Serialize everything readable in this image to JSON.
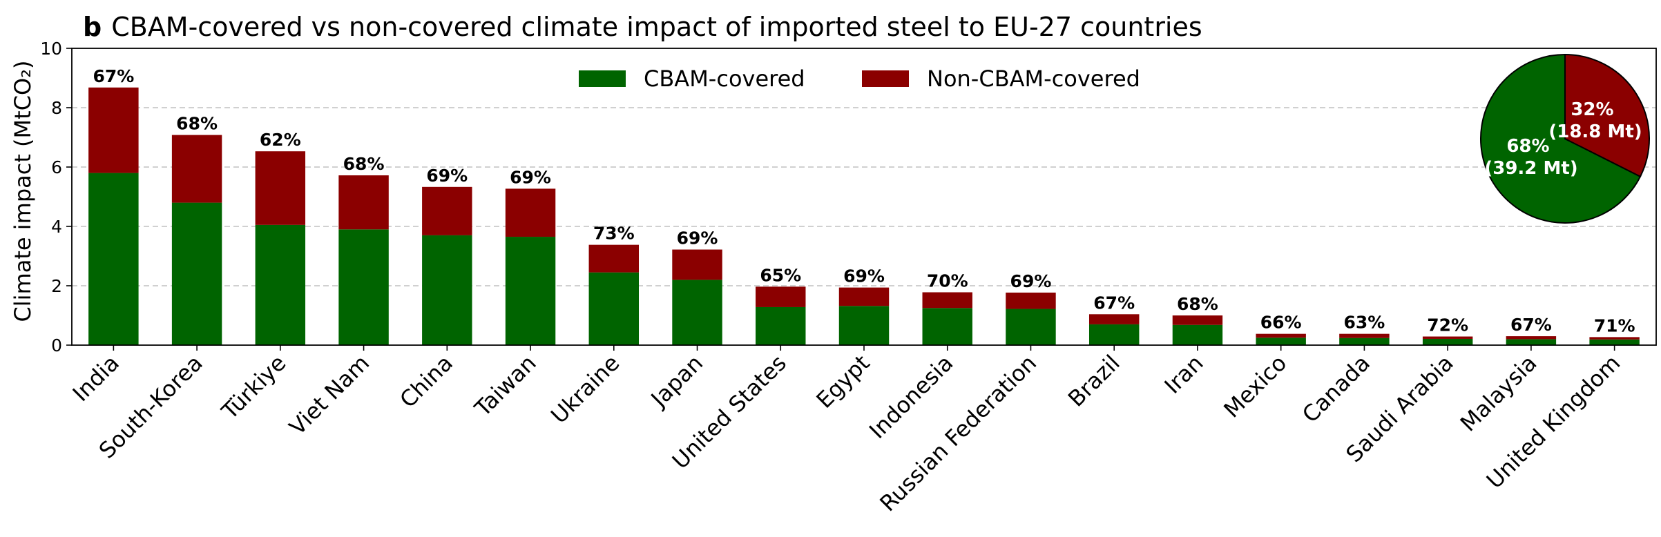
{
  "title": {
    "prefix": "b",
    "text": "CBAM-covered vs non-covered climate impact of imported steel to EU-27 countries"
  },
  "colors": {
    "covered": "#006400",
    "non_covered": "#8b0000",
    "grid": "#c0c0c0",
    "pie_edge": "#000000"
  },
  "chart_data": {
    "type": "bar",
    "stacked": true,
    "ylabel": "Climate impact (MtCO₂)",
    "xlabel": "",
    "ylim": [
      0,
      10
    ],
    "yticks": [
      0,
      2,
      4,
      6,
      8,
      10
    ],
    "grid": "horizontal dashed",
    "legend_position": "top-center",
    "categories": [
      "India",
      "South-Korea",
      "Türkiye",
      "Viet Nam",
      "China",
      "Taiwan",
      "Ukraine",
      "Japan",
      "United States",
      "Egypt",
      "Indonesia",
      "Russian Federation",
      "Brazil",
      "Iran",
      "Mexico",
      "Canada",
      "Saudi Arabia",
      "Malaysia",
      "United Kingdom"
    ],
    "series": [
      {
        "name": "CBAM-covered",
        "values": [
          5.8,
          4.8,
          4.05,
          3.9,
          3.7,
          3.65,
          2.45,
          2.2,
          1.28,
          1.32,
          1.25,
          1.22,
          0.7,
          0.68,
          0.25,
          0.24,
          0.21,
          0.2,
          0.19
        ]
      },
      {
        "name": "Non-CBAM-covered",
        "values": [
          2.88,
          2.28,
          2.48,
          1.82,
          1.63,
          1.62,
          0.93,
          1.02,
          0.69,
          0.62,
          0.53,
          0.55,
          0.34,
          0.32,
          0.13,
          0.14,
          0.08,
          0.1,
          0.08
        ]
      }
    ],
    "labels": [
      "67%",
      "68%",
      "62%",
      "68%",
      "69%",
      "69%",
      "73%",
      "69%",
      "65%",
      "69%",
      "70%",
      "69%",
      "67%",
      "68%",
      "66%",
      "63%",
      "72%",
      "67%",
      "71%"
    ],
    "inset_pie": {
      "type": "pie",
      "position": "top-right",
      "slices": [
        {
          "name": "CBAM-covered",
          "value": 39.2,
          "label_line1": "68%",
          "label_line2": "(39.2 Mt)"
        },
        {
          "name": "Non-CBAM-covered",
          "value": 18.8,
          "label_line1": "32%",
          "label_line2": "(18.8 Mt)"
        }
      ]
    }
  }
}
